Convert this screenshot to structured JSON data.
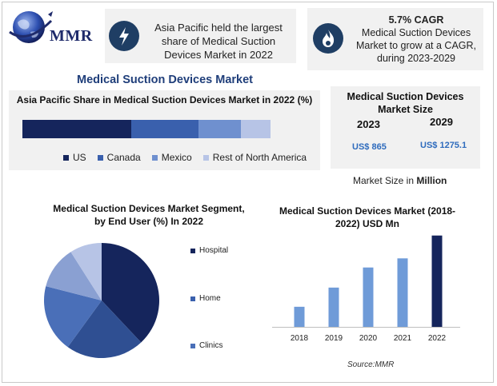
{
  "logo": {
    "text": "MMR"
  },
  "card_left": {
    "icon": "lightning-bolt-icon",
    "text": "Asia Pacific held the largest share of Medical Suction Devices Market in 2022"
  },
  "card_right": {
    "icon": "flame-icon",
    "cagr": "5.7% CAGR",
    "text": "Medical Suction Devices Market to grow at a CAGR, during 2023-2029"
  },
  "main_title": "Medical Suction Devices Market",
  "market_size": {
    "title": "Medical Suction Devices Market Size",
    "year_a": "2023",
    "year_b": "2029",
    "value_a": "US$ 865",
    "value_b": "US$ 1275.1",
    "note_prefix": "Market Size in ",
    "note_unit": "Million"
  },
  "source": "Source:MMR",
  "colors": {
    "navy": "#15255c",
    "blue": "#3a60ad",
    "mid": "#6f90cf",
    "light": "#b7c4e6",
    "card_bg": "#f1f1f1",
    "icon_bg": "#1f3e64",
    "value_text": "#2e6bbd"
  },
  "chart_data": [
    {
      "type": "bar",
      "orientation": "horizontal-stacked",
      "title": "Asia Pacific Share in Medical Suction Devices Market in 2022 (%)",
      "series": [
        {
          "name": "US",
          "value": 44,
          "color": "#15255c"
        },
        {
          "name": "Canada",
          "value": 27,
          "color": "#3a60ad"
        },
        {
          "name": "Mexico",
          "value": 17,
          "color": "#6f90cf"
        },
        {
          "name": "Rest of North America",
          "value": 12,
          "color": "#b7c4e6"
        }
      ],
      "legend": "bottom"
    },
    {
      "type": "pie",
      "title": "Medical Suction Devices Market Segment, by End User (%) In 2022",
      "slices": [
        {
          "name": "Hospital",
          "value": 38,
          "color": "#15255c"
        },
        {
          "name": "Home",
          "value": 22,
          "color": "#2f4f92"
        },
        {
          "name": "Clinics",
          "value": 19,
          "color": "#4a6fb8"
        },
        {
          "name": "",
          "value": 12,
          "color": "#8aa0d2"
        },
        {
          "name": "",
          "value": 9,
          "color": "#b7c4e6"
        }
      ],
      "legend_labels": [
        "Hospital",
        "Home",
        "Clinics"
      ],
      "legend": "right"
    },
    {
      "type": "bar",
      "title": "Medical Suction Devices Market (2018-2022) USD Mn",
      "categories": [
        "2018",
        "2019",
        "2020",
        "2021",
        "2022"
      ],
      "values": [
        220,
        430,
        650,
        750,
        1000
      ],
      "colors": [
        "#6f9bd8",
        "#6f9bd8",
        "#6f9bd8",
        "#6f9bd8",
        "#15255c"
      ],
      "ylim": [
        0,
        1050
      ],
      "grid": false
    }
  ]
}
